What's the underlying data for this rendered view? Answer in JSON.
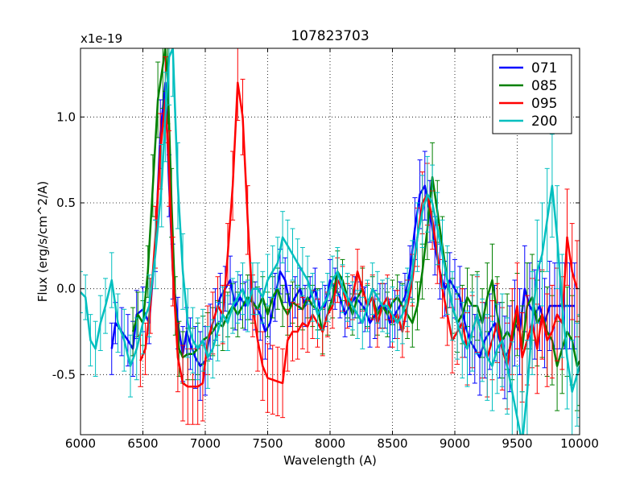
{
  "chart_data": {
    "type": "line",
    "title": "107823703",
    "xlabel": "Wavelength (A)",
    "ylabel": "Flux (erg/s/cm^2/A)",
    "y_offset_label": "x1e-19",
    "xlim": [
      6000,
      10000
    ],
    "ylim": [
      -0.85,
      1.4
    ],
    "x_ticks": [
      6000,
      6500,
      7000,
      7500,
      8000,
      8500,
      9000,
      9500,
      10000
    ],
    "x_tick_labels": [
      "6000",
      "6500",
      "7000",
      "7500",
      "8000",
      "8500",
      "9000",
      "9500",
      "10000"
    ],
    "y_ticks": [
      -0.5,
      0.0,
      0.5,
      1.0
    ],
    "y_tick_labels": [
      "-0.5",
      "0.0",
      "0.5",
      "1.0"
    ],
    "grid": true,
    "legend_position": "top-right",
    "series": [
      {
        "name": "071",
        "color": "#0000ff",
        "x": [
          6250,
          6280,
          6330,
          6380,
          6420,
          6450,
          6500,
          6550,
          6600,
          6640,
          6680,
          6710,
          6740,
          6780,
          6820,
          6850,
          6880,
          6920,
          6960,
          7000,
          7040,
          7080,
          7120,
          7160,
          7200,
          7240,
          7280,
          7320,
          7360,
          7400,
          7440,
          7480,
          7520,
          7560,
          7600,
          7640,
          7680,
          7720,
          7760,
          7800,
          7840,
          7880,
          7920,
          7960,
          8000,
          8040,
          8080,
          8120,
          8160,
          8200,
          8240,
          8280,
          8320,
          8360,
          8400,
          8440,
          8480,
          8520,
          8560,
          8600,
          8640,
          8680,
          8720,
          8760,
          8800,
          8840,
          8880,
          8920,
          8960,
          9000,
          9040,
          9080,
          9120,
          9160,
          9200,
          9240,
          9280,
          9320,
          9360,
          9400,
          9440,
          9480,
          9520,
          9560,
          9600,
          9640,
          9680,
          9720,
          9760,
          9800,
          9840,
          9880,
          9920,
          9960
        ],
        "values": [
          -0.35,
          -0.2,
          -0.25,
          -0.3,
          -0.35,
          -0.15,
          -0.12,
          -0.2,
          0.25,
          0.9,
          1.2,
          0.6,
          0.1,
          -0.2,
          -0.38,
          -0.25,
          -0.32,
          -0.4,
          -0.45,
          -0.42,
          -0.25,
          -0.15,
          -0.05,
          0.0,
          0.05,
          -0.1,
          -0.05,
          -0.1,
          -0.05,
          -0.1,
          -0.15,
          -0.25,
          -0.2,
          -0.05,
          0.1,
          0.05,
          -0.1,
          -0.05,
          0.0,
          -0.1,
          -0.05,
          0.0,
          -0.12,
          -0.1,
          0.05,
          0.0,
          -0.05,
          -0.15,
          -0.1,
          -0.05,
          -0.08,
          -0.12,
          -0.2,
          -0.15,
          -0.1,
          -0.1,
          -0.2,
          -0.15,
          -0.1,
          -0.05,
          0.1,
          0.35,
          0.55,
          0.6,
          0.45,
          0.25,
          0.1,
          0.0,
          0.05,
          0.0,
          -0.05,
          -0.2,
          -0.3,
          -0.35,
          -0.4,
          -0.3,
          -0.25,
          -0.2,
          -0.3,
          -0.4,
          -0.35,
          -0.2,
          -0.25,
          0.0,
          -0.1,
          -0.15,
          -0.1,
          -0.2,
          -0.1,
          -0.1,
          -0.1,
          -0.1,
          -0.1,
          -0.1
        ],
        "errors": [
          0.15,
          0.12,
          0.14,
          0.15,
          0.16,
          0.14,
          0.13,
          0.12,
          0.15,
          0.2,
          0.22,
          0.18,
          0.16,
          0.15,
          0.16,
          0.14,
          0.15,
          0.18,
          0.2,
          0.2,
          0.16,
          0.15,
          0.14,
          0.13,
          0.14,
          0.14,
          0.13,
          0.14,
          0.13,
          0.14,
          0.15,
          0.16,
          0.15,
          0.14,
          0.13,
          0.13,
          0.12,
          0.12,
          0.12,
          0.12,
          0.12,
          0.12,
          0.12,
          0.12,
          0.12,
          0.12,
          0.12,
          0.13,
          0.12,
          0.12,
          0.12,
          0.13,
          0.14,
          0.14,
          0.13,
          0.13,
          0.14,
          0.14,
          0.14,
          0.14,
          0.15,
          0.18,
          0.2,
          0.2,
          0.18,
          0.17,
          0.16,
          0.16,
          0.16,
          0.17,
          0.18,
          0.2,
          0.2,
          0.2,
          0.22,
          0.22,
          0.22,
          0.22,
          0.22,
          0.24,
          0.25,
          0.25,
          0.25,
          0.25,
          0.25,
          0.26,
          0.26,
          0.26,
          0.26,
          0.25,
          0.25,
          0.25,
          0.25,
          0.25
        ]
      },
      {
        "name": "085",
        "color": "#008000",
        "x": [
          6420,
          6460,
          6500,
          6540,
          6580,
          6620,
          6660,
          6680,
          6700,
          6730,
          6760,
          6790,
          6820,
          6860,
          6900,
          6940,
          6980,
          7020,
          7060,
          7100,
          7140,
          7180,
          7220,
          7260,
          7300,
          7340,
          7380,
          7420,
          7460,
          7500,
          7540,
          7580,
          7620,
          7660,
          7700,
          7740,
          7780,
          7820,
          7860,
          7900,
          7940,
          7980,
          8020,
          8060,
          8100,
          8140,
          8180,
          8220,
          8260,
          8300,
          8340,
          8380,
          8420,
          8460,
          8500,
          8540,
          8580,
          8620,
          8660,
          8700,
          8740,
          8780,
          8820,
          8860,
          8900,
          8940,
          8980,
          9020,
          9060,
          9100,
          9140,
          9180,
          9220,
          9260,
          9300,
          9340,
          9380,
          9420,
          9460,
          9500,
          9540,
          9580,
          9620,
          9660,
          9700,
          9740,
          9780,
          9820,
          9860,
          9900,
          9940,
          9980,
          10000
        ],
        "values": [
          -0.25,
          -0.15,
          -0.2,
          0.1,
          0.6,
          1.1,
          1.3,
          1.4,
          1.2,
          0.5,
          -0.1,
          -0.35,
          -0.4,
          -0.38,
          -0.38,
          -0.35,
          -0.3,
          -0.28,
          -0.25,
          -0.2,
          -0.22,
          -0.15,
          -0.1,
          -0.15,
          -0.1,
          -0.05,
          -0.08,
          -0.12,
          -0.05,
          -0.15,
          -0.05,
          0.0,
          -0.1,
          -0.15,
          -0.08,
          -0.1,
          -0.12,
          -0.05,
          -0.1,
          -0.12,
          -0.25,
          -0.15,
          -0.05,
          0.1,
          0.05,
          -0.05,
          -0.15,
          -0.05,
          0.0,
          -0.1,
          -0.05,
          -0.15,
          -0.1,
          -0.15,
          -0.08,
          -0.05,
          -0.1,
          -0.15,
          -0.2,
          -0.1,
          0.1,
          0.35,
          0.65,
          0.45,
          0.25,
          0.05,
          -0.1,
          -0.2,
          -0.15,
          -0.05,
          -0.1,
          -0.1,
          -0.2,
          -0.05,
          0.05,
          -0.15,
          -0.3,
          -0.25,
          -0.3,
          -0.15,
          -0.35,
          -0.1,
          -0.05,
          -0.2,
          -0.15,
          -0.25,
          -0.3,
          -0.45,
          -0.35,
          -0.25,
          -0.3,
          -0.45,
          -0.42
        ],
        "errors": [
          0.14,
          0.13,
          0.13,
          0.15,
          0.18,
          0.22,
          0.25,
          0.25,
          0.24,
          0.2,
          0.17,
          0.16,
          0.15,
          0.15,
          0.15,
          0.15,
          0.14,
          0.14,
          0.14,
          0.13,
          0.14,
          0.13,
          0.13,
          0.13,
          0.13,
          0.13,
          0.12,
          0.13,
          0.12,
          0.13,
          0.12,
          0.12,
          0.12,
          0.12,
          0.12,
          0.12,
          0.12,
          0.12,
          0.12,
          0.12,
          0.13,
          0.12,
          0.12,
          0.12,
          0.12,
          0.12,
          0.12,
          0.12,
          0.12,
          0.12,
          0.12,
          0.12,
          0.13,
          0.13,
          0.13,
          0.13,
          0.13,
          0.14,
          0.14,
          0.14,
          0.16,
          0.18,
          0.2,
          0.18,
          0.17,
          0.16,
          0.16,
          0.17,
          0.17,
          0.17,
          0.18,
          0.2,
          0.2,
          0.2,
          0.21,
          0.22,
          0.22,
          0.22,
          0.23,
          0.24,
          0.25,
          0.25,
          0.25,
          0.25,
          0.25,
          0.26,
          0.26,
          0.26,
          0.26,
          0.26,
          0.26,
          0.26,
          0.26
        ]
      },
      {
        "name": "095",
        "color": "#ff0000",
        "x": [
          6480,
          6520,
          6560,
          6600,
          6640,
          6680,
          6710,
          6740,
          6780,
          6820,
          6860,
          6900,
          6940,
          6980,
          7020,
          7060,
          7100,
          7140,
          7180,
          7220,
          7260,
          7300,
          7340,
          7380,
          7420,
          7460,
          7500,
          7540,
          7580,
          7620,
          7660,
          7700,
          7740,
          7780,
          7820,
          7860,
          7900,
          7940,
          7980,
          8020,
          8060,
          8100,
          8140,
          8180,
          8220,
          8260,
          8300,
          8340,
          8380,
          8420,
          8460,
          8500,
          8540,
          8580,
          8620,
          8660,
          8700,
          8740,
          8780,
          8820,
          8860,
          8900,
          8940,
          8980,
          9020,
          9060,
          9100,
          9140,
          9180,
          9220,
          9260,
          9300,
          9340,
          9380,
          9420,
          9460,
          9500,
          9540,
          9580,
          9620,
          9660,
          9700,
          9740,
          9780,
          9820,
          9860,
          9900,
          9940,
          9980
        ],
        "values": [
          -0.42,
          -0.35,
          -0.1,
          0.3,
          0.8,
          1.1,
          0.7,
          0.1,
          -0.4,
          -0.55,
          -0.57,
          -0.57,
          -0.57,
          -0.55,
          -0.3,
          -0.2,
          -0.1,
          -0.15,
          0.2,
          0.6,
          1.2,
          1.0,
          0.4,
          -0.1,
          -0.3,
          -0.45,
          -0.52,
          -0.53,
          -0.54,
          -0.55,
          -0.3,
          -0.25,
          -0.25,
          -0.2,
          -0.22,
          -0.15,
          -0.2,
          -0.25,
          -0.15,
          -0.1,
          0.05,
          0.0,
          -0.1,
          -0.05,
          0.1,
          0.0,
          -0.1,
          -0.05,
          -0.2,
          -0.1,
          -0.05,
          -0.2,
          -0.15,
          -0.25,
          -0.1,
          0.05,
          0.3,
          0.5,
          0.55,
          0.4,
          0.2,
          0.0,
          -0.15,
          -0.3,
          -0.25,
          -0.2,
          -0.35,
          -0.25,
          -0.15,
          -0.3,
          -0.4,
          -0.3,
          -0.2,
          -0.35,
          -0.45,
          -0.25,
          -0.1,
          -0.4,
          -0.3,
          -0.2,
          -0.35,
          -0.15,
          -0.3,
          -0.25,
          -0.15,
          -0.2,
          0.3,
          0.1,
          0.0
        ],
        "errors": [
          0.15,
          0.15,
          0.16,
          0.18,
          0.22,
          0.25,
          0.22,
          0.2,
          0.2,
          0.22,
          0.22,
          0.22,
          0.22,
          0.22,
          0.2,
          0.18,
          0.17,
          0.17,
          0.18,
          0.2,
          0.22,
          0.22,
          0.2,
          0.18,
          0.18,
          0.2,
          0.2,
          0.2,
          0.2,
          0.2,
          0.18,
          0.17,
          0.16,
          0.15,
          0.15,
          0.14,
          0.14,
          0.14,
          0.13,
          0.13,
          0.13,
          0.13,
          0.13,
          0.13,
          0.13,
          0.13,
          0.13,
          0.13,
          0.14,
          0.13,
          0.13,
          0.14,
          0.14,
          0.15,
          0.15,
          0.15,
          0.17,
          0.18,
          0.18,
          0.17,
          0.17,
          0.17,
          0.18,
          0.19,
          0.19,
          0.2,
          0.21,
          0.21,
          0.22,
          0.22,
          0.23,
          0.23,
          0.23,
          0.24,
          0.25,
          0.25,
          0.25,
          0.26,
          0.26,
          0.26,
          0.26,
          0.26,
          0.27,
          0.27,
          0.27,
          0.27,
          0.28,
          0.28,
          0.28
        ]
      },
      {
        "name": "200",
        "color": "#00bfbf",
        "x": [
          6000,
          6040,
          6080,
          6120,
          6160,
          6200,
          6250,
          6300,
          6350,
          6400,
          6450,
          6500,
          6550,
          6600,
          6650,
          6680,
          6710,
          6740,
          6780,
          6820,
          6860,
          6900,
          6940,
          6980,
          7020,
          7060,
          7100,
          7140,
          7180,
          7220,
          7260,
          7300,
          7340,
          7380,
          7420,
          7460,
          7500,
          7540,
          7580,
          7620,
          7660,
          7700,
          7740,
          7780,
          7820,
          7860,
          7900,
          7940,
          7980,
          8020,
          8060,
          8100,
          8140,
          8180,
          8220,
          8260,
          8300,
          8340,
          8380,
          8420,
          8460,
          8500,
          8540,
          8580,
          8620,
          8660,
          8700,
          8740,
          8780,
          8820,
          8860,
          8900,
          8940,
          8980,
          9020,
          9060,
          9100,
          9140,
          9180,
          9220,
          9260,
          9300,
          9340,
          9380,
          9420,
          9460,
          9500,
          9540,
          9580,
          9620,
          9660,
          9700,
          9740,
          9780,
          9820,
          9860,
          9900,
          9940,
          9980,
          10000
        ],
        "values": [
          -0.02,
          -0.05,
          -0.3,
          -0.35,
          -0.2,
          -0.1,
          0.05,
          -0.2,
          -0.3,
          -0.45,
          -0.35,
          -0.2,
          -0.1,
          0.2,
          0.6,
          1.0,
          1.35,
          1.4,
          0.6,
          0.1,
          -0.2,
          -0.3,
          -0.35,
          -0.3,
          -0.4,
          -0.35,
          -0.25,
          -0.15,
          -0.2,
          -0.1,
          -0.05,
          0.0,
          -0.1,
          0.0,
          0.0,
          -0.05,
          0.05,
          0.1,
          0.15,
          0.3,
          0.25,
          0.2,
          0.15,
          0.1,
          0.05,
          -0.05,
          -0.15,
          -0.1,
          -0.05,
          0.05,
          0.1,
          0.0,
          -0.05,
          -0.1,
          -0.15,
          -0.2,
          -0.1,
          0.0,
          -0.05,
          -0.1,
          -0.1,
          -0.15,
          -0.2,
          -0.15,
          -0.05,
          0.1,
          0.3,
          0.45,
          0.55,
          0.5,
          0.35,
          0.2,
          0.05,
          -0.1,
          -0.2,
          -0.3,
          -0.35,
          -0.25,
          -0.15,
          -0.3,
          -0.4,
          -0.45,
          -0.35,
          -0.3,
          -0.45,
          -0.6,
          -0.75,
          -0.9,
          -0.6,
          -0.2,
          0.1,
          0.2,
          0.4,
          0.6,
          0.3,
          -0.1,
          -0.4,
          -0.6,
          -0.5,
          -0.45
        ],
        "errors": [
          0.12,
          0.13,
          0.15,
          0.16,
          0.16,
          0.16,
          0.16,
          0.17,
          0.18,
          0.18,
          0.18,
          0.18,
          0.18,
          0.2,
          0.24,
          0.26,
          0.28,
          0.28,
          0.25,
          0.22,
          0.2,
          0.19,
          0.18,
          0.18,
          0.18,
          0.17,
          0.17,
          0.16,
          0.16,
          0.16,
          0.15,
          0.15,
          0.15,
          0.15,
          0.15,
          0.15,
          0.15,
          0.15,
          0.15,
          0.15,
          0.15,
          0.15,
          0.14,
          0.14,
          0.14,
          0.14,
          0.14,
          0.14,
          0.14,
          0.14,
          0.14,
          0.14,
          0.14,
          0.14,
          0.14,
          0.15,
          0.15,
          0.15,
          0.15,
          0.15,
          0.16,
          0.16,
          0.16,
          0.17,
          0.17,
          0.18,
          0.2,
          0.21,
          0.22,
          0.22,
          0.21,
          0.2,
          0.2,
          0.2,
          0.21,
          0.22,
          0.22,
          0.23,
          0.23,
          0.24,
          0.25,
          0.26,
          0.26,
          0.27,
          0.28,
          0.29,
          0.3,
          0.3,
          0.3,
          0.3,
          0.3,
          0.3,
          0.3,
          0.3,
          0.3,
          0.3,
          0.3,
          0.3,
          0.3,
          0.3
        ]
      }
    ]
  }
}
